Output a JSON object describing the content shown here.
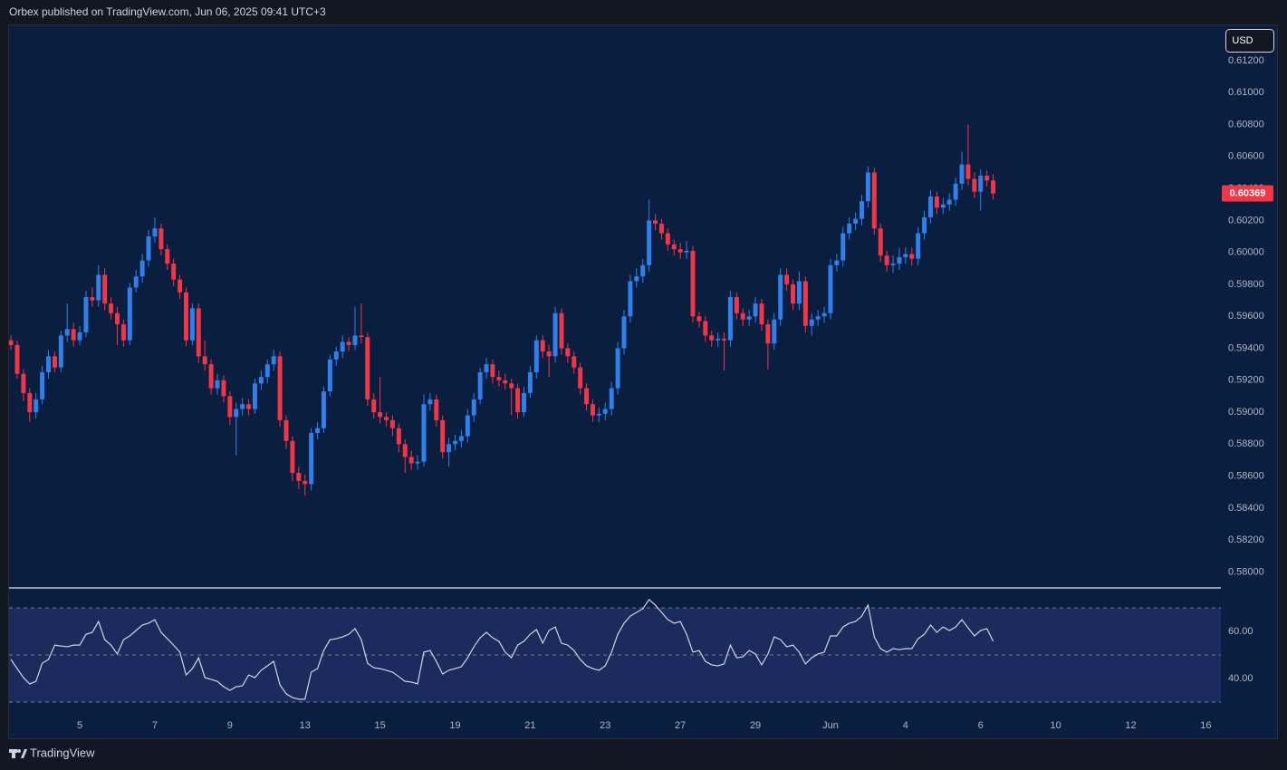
{
  "header": {
    "text": "Orbex published on TradingView.com, Jun 06, 2025 09:41 UTC+3"
  },
  "currency": "USD",
  "footer": {
    "brand": "TradingView"
  },
  "chart_data": [
    {
      "type": "candlestick",
      "up_color": "#2f80ed",
      "down_color": "#f23645",
      "open": [
        0.5945,
        0.5942,
        0.5924,
        0.5912,
        0.59,
        0.5908,
        0.5925,
        0.5935,
        0.5928,
        0.5948,
        0.5952,
        0.5945,
        0.595,
        0.5972,
        0.597,
        0.5986,
        0.5968,
        0.5962,
        0.5955,
        0.5945,
        0.5978,
        0.5985,
        0.5995,
        0.601,
        0.6015,
        0.6002,
        0.5993,
        0.5983,
        0.5975,
        0.5945,
        0.5965,
        0.5935,
        0.593,
        0.5915,
        0.592,
        0.591,
        0.5897,
        0.5902,
        0.5905,
        0.5902,
        0.5918,
        0.5922,
        0.593,
        0.5935,
        0.5895,
        0.5882,
        0.5862,
        0.5857,
        0.5855,
        0.5887,
        0.589,
        0.5913,
        0.5933,
        0.5938,
        0.5944,
        0.5942,
        0.5948,
        0.5947,
        0.5908,
        0.59,
        0.5897,
        0.5895,
        0.589,
        0.588,
        0.5872,
        0.5868,
        0.5869,
        0.5905,
        0.5908,
        0.5895,
        0.5875,
        0.588,
        0.5882,
        0.5885,
        0.5898,
        0.5908,
        0.5925,
        0.593,
        0.5922,
        0.592,
        0.5918,
        0.5915,
        0.59,
        0.5912,
        0.5925,
        0.5945,
        0.5938,
        0.5935,
        0.5962,
        0.594,
        0.5935,
        0.5928,
        0.5915,
        0.5905,
        0.5898,
        0.5899,
        0.5902,
        0.5915,
        0.594,
        0.596,
        0.5982,
        0.5985,
        0.5992,
        0.602,
        0.6018,
        0.6012,
        0.6005,
        0.6002,
        0.6,
        0.6001,
        0.596,
        0.5957,
        0.5948,
        0.5945,
        0.5946,
        0.5945,
        0.5972,
        0.5962,
        0.5958,
        0.596,
        0.5968,
        0.5955,
        0.5943,
        0.5958,
        0.5986,
        0.598,
        0.5968,
        0.5982,
        0.5954,
        0.5958,
        0.596,
        0.5962,
        0.5992,
        0.5995,
        0.6012,
        0.6018,
        0.6021,
        0.6032,
        0.605,
        0.6015,
        0.5998,
        0.5992,
        0.5993,
        0.5997,
        0.5999,
        0.5996,
        0.6012,
        0.6022,
        0.6035,
        0.6028,
        0.603,
        0.6033,
        0.6043,
        0.6055,
        0.6046,
        0.6038,
        0.6048,
        0.6045
      ],
      "high": [
        0.5948,
        0.5945,
        0.5927,
        0.5915,
        0.5912,
        0.5929,
        0.5939,
        0.5938,
        0.5951,
        0.5968,
        0.5956,
        0.5954,
        0.5976,
        0.5978,
        0.5992,
        0.599,
        0.5972,
        0.5966,
        0.5958,
        0.5981,
        0.5989,
        0.5999,
        0.6014,
        0.6022,
        0.6018,
        0.6005,
        0.5996,
        0.5986,
        0.5978,
        0.5968,
        0.5968,
        0.5945,
        0.5933,
        0.5924,
        0.5923,
        0.5913,
        0.5906,
        0.5909,
        0.5908,
        0.5921,
        0.5926,
        0.5933,
        0.5939,
        0.5938,
        0.5898,
        0.5885,
        0.5866,
        0.5861,
        0.589,
        0.5894,
        0.5916,
        0.5936,
        0.5941,
        0.5948,
        0.5947,
        0.5966,
        0.5968,
        0.595,
        0.5912,
        0.5922,
        0.59,
        0.5898,
        0.5893,
        0.5883,
        0.5876,
        0.5873,
        0.5911,
        0.5912,
        0.5911,
        0.5898,
        0.5884,
        0.5886,
        0.5889,
        0.5902,
        0.5912,
        0.5928,
        0.5934,
        0.5933,
        0.5926,
        0.5924,
        0.5921,
        0.5918,
        0.5916,
        0.5929,
        0.5948,
        0.5948,
        0.5942,
        0.5966,
        0.5965,
        0.5943,
        0.5938,
        0.5931,
        0.5918,
        0.5908,
        0.5903,
        0.5906,
        0.5919,
        0.5944,
        0.5964,
        0.5986,
        0.599,
        0.5996,
        0.6033,
        0.6024,
        0.6021,
        0.6015,
        0.6008,
        0.6006,
        0.6007,
        0.6004,
        0.5963,
        0.596,
        0.5951,
        0.595,
        0.595,
        0.5976,
        0.5975,
        0.5965,
        0.5964,
        0.5972,
        0.5971,
        0.5958,
        0.5962,
        0.599,
        0.599,
        0.5983,
        0.5988,
        0.5985,
        0.5962,
        0.5964,
        0.5966,
        0.5996,
        0.5999,
        0.6016,
        0.6022,
        0.6025,
        0.6036,
        0.6054,
        0.6053,
        0.6018,
        0.6001,
        0.5998,
        0.6003,
        0.6003,
        0.6003,
        0.6016,
        0.6026,
        0.6039,
        0.6038,
        0.6034,
        0.6037,
        0.6047,
        0.6063,
        0.608,
        0.605,
        0.6052,
        0.6051,
        0.6049
      ],
      "low": [
        0.5939,
        0.5921,
        0.5907,
        0.5894,
        0.5896,
        0.5905,
        0.5921,
        0.5925,
        0.5925,
        0.5944,
        0.5941,
        0.5942,
        0.5947,
        0.5966,
        0.5966,
        0.5964,
        0.5958,
        0.5942,
        0.5941,
        0.5942,
        0.5975,
        0.5981,
        0.5991,
        0.6006,
        0.5998,
        0.5989,
        0.5979,
        0.5971,
        0.5941,
        0.5942,
        0.5931,
        0.5926,
        0.5911,
        0.5911,
        0.5906,
        0.5892,
        0.5873,
        0.5898,
        0.5898,
        0.5899,
        0.5914,
        0.5918,
        0.5926,
        0.5891,
        0.5877,
        0.5857,
        0.5852,
        0.5848,
        0.5851,
        0.5883,
        0.5887,
        0.591,
        0.5929,
        0.5934,
        0.5938,
        0.5939,
        0.5943,
        0.5904,
        0.5896,
        0.5893,
        0.5891,
        0.5885,
        0.5875,
        0.5862,
        0.5864,
        0.5864,
        0.5866,
        0.5901,
        0.5891,
        0.5871,
        0.5866,
        0.5876,
        0.5878,
        0.5881,
        0.5894,
        0.5905,
        0.5921,
        0.5918,
        0.5916,
        0.5914,
        0.5898,
        0.5896,
        0.5897,
        0.5909,
        0.5921,
        0.5934,
        0.5922,
        0.5931,
        0.5936,
        0.5931,
        0.5924,
        0.5911,
        0.5901,
        0.5894,
        0.5894,
        0.5895,
        0.5898,
        0.5911,
        0.5936,
        0.5956,
        0.5978,
        0.5981,
        0.5988,
        0.6014,
        0.6008,
        0.6001,
        0.5998,
        0.5996,
        0.5996,
        0.5956,
        0.5953,
        0.5944,
        0.5941,
        0.5941,
        0.5926,
        0.5941,
        0.5958,
        0.5954,
        0.5954,
        0.5956,
        0.5951,
        0.5927,
        0.5939,
        0.5954,
        0.5976,
        0.5964,
        0.5964,
        0.595,
        0.5948,
        0.5954,
        0.5956,
        0.5958,
        0.5988,
        0.5991,
        0.6008,
        0.6014,
        0.6017,
        0.6028,
        0.6011,
        0.5994,
        0.5988,
        0.5987,
        0.5989,
        0.5993,
        0.5992,
        0.5992,
        0.6008,
        0.6018,
        0.6024,
        0.6024,
        0.6026,
        0.6029,
        0.6039,
        0.6042,
        0.6034,
        0.6026,
        0.6041,
        0.6033
      ],
      "close": [
        0.5942,
        0.5924,
        0.5912,
        0.59,
        0.5908,
        0.5925,
        0.5935,
        0.5928,
        0.5948,
        0.5952,
        0.5945,
        0.595,
        0.5972,
        0.597,
        0.5986,
        0.5968,
        0.5962,
        0.5955,
        0.5945,
        0.5978,
        0.5985,
        0.5995,
        0.601,
        0.6015,
        0.6002,
        0.5993,
        0.5983,
        0.5975,
        0.5945,
        0.5965,
        0.5935,
        0.593,
        0.5915,
        0.592,
        0.591,
        0.5897,
        0.5902,
        0.5905,
        0.5902,
        0.5918,
        0.5922,
        0.593,
        0.5935,
        0.5895,
        0.5882,
        0.5862,
        0.5857,
        0.5855,
        0.5887,
        0.589,
        0.5913,
        0.5933,
        0.5938,
        0.5944,
        0.5942,
        0.5948,
        0.5947,
        0.5908,
        0.59,
        0.5897,
        0.5895,
        0.589,
        0.588,
        0.5872,
        0.5868,
        0.5869,
        0.5905,
        0.5908,
        0.5895,
        0.5875,
        0.588,
        0.5882,
        0.5885,
        0.5898,
        0.5908,
        0.5925,
        0.593,
        0.5922,
        0.592,
        0.5918,
        0.5915,
        0.59,
        0.5912,
        0.5925,
        0.5945,
        0.5938,
        0.5935,
        0.5962,
        0.594,
        0.5935,
        0.5928,
        0.5915,
        0.5905,
        0.5898,
        0.5899,
        0.5902,
        0.5915,
        0.594,
        0.596,
        0.5982,
        0.5985,
        0.5992,
        0.602,
        0.6018,
        0.6012,
        0.6005,
        0.6002,
        0.6,
        0.6001,
        0.596,
        0.5957,
        0.5948,
        0.5945,
        0.5946,
        0.5945,
        0.5972,
        0.5962,
        0.5958,
        0.596,
        0.5968,
        0.5955,
        0.5943,
        0.5958,
        0.5986,
        0.598,
        0.5968,
        0.5982,
        0.5954,
        0.5958,
        0.596,
        0.5962,
        0.5992,
        0.5995,
        0.6012,
        0.6018,
        0.6021,
        0.6032,
        0.605,
        0.6015,
        0.5998,
        0.5992,
        0.5993,
        0.5997,
        0.5999,
        0.5996,
        0.6012,
        0.6022,
        0.6035,
        0.6028,
        0.603,
        0.6033,
        0.6043,
        0.6055,
        0.6046,
        0.6038,
        0.6048,
        0.6045,
        0.60369
      ],
      "xlim": [
        -0.3,
        193.4
      ],
      "xticks": [
        {
          "value": 11,
          "label": "5"
        },
        {
          "value": 23,
          "label": "7"
        },
        {
          "value": 35,
          "label": "9"
        },
        {
          "value": 47,
          "label": "13"
        },
        {
          "value": 59,
          "label": "15"
        },
        {
          "value": 71,
          "label": "19"
        },
        {
          "value": 83,
          "label": "21"
        },
        {
          "value": 95,
          "label": "23"
        },
        {
          "value": 107,
          "label": "27"
        },
        {
          "value": 119,
          "label": "29"
        },
        {
          "value": 131,
          "label": "Jun"
        },
        {
          "value": 143,
          "label": "4"
        },
        {
          "value": 155,
          "label": "6"
        },
        {
          "value": 167,
          "label": "10"
        },
        {
          "value": 179,
          "label": "12"
        },
        {
          "value": 191,
          "label": "16"
        }
      ],
      "ylim": [
        0.57906,
        0.61421
      ],
      "yticks": [
        {
          "value": 0.612,
          "label": "0.61200"
        },
        {
          "value": 0.61,
          "label": "0.61000"
        },
        {
          "value": 0.608,
          "label": "0.60800"
        },
        {
          "value": 0.606,
          "label": "0.60600"
        },
        {
          "value": 0.604,
          "label": "0.60400"
        },
        {
          "value": 0.602,
          "label": "0.60200"
        },
        {
          "value": 0.6,
          "label": "0.60000"
        },
        {
          "value": 0.598,
          "label": "0.59800"
        },
        {
          "value": 0.596,
          "label": "0.59600"
        },
        {
          "value": 0.594,
          "label": "0.59400"
        },
        {
          "value": 0.592,
          "label": "0.59200"
        },
        {
          "value": 0.59,
          "label": "0.59000"
        },
        {
          "value": 0.588,
          "label": "0.58800"
        },
        {
          "value": 0.586,
          "label": "0.58600"
        },
        {
          "value": 0.584,
          "label": "0.58400"
        },
        {
          "value": 0.582,
          "label": "0.58200"
        },
        {
          "value": 0.58,
          "label": "0.58000"
        }
      ]
    },
    {
      "type": "line",
      "color": "#d1d4dc",
      "band_color": "#1b2b5e",
      "values": [
        48.1,
        44.2,
        40.4,
        37.7,
        38.8,
        46.5,
        48.1,
        54.2,
        53.8,
        53.5,
        54.2,
        54.2,
        58.8,
        59.6,
        64.2,
        56.5,
        54.2,
        50.4,
        56.5,
        58.1,
        60.4,
        62.7,
        63.5,
        65.0,
        59.6,
        56.9,
        54.2,
        51.2,
        41.5,
        44.2,
        48.8,
        40.4,
        39.6,
        38.8,
        36.5,
        35.0,
        36.5,
        36.9,
        41.5,
        40.4,
        43.5,
        45.4,
        47.3,
        37.3,
        33.5,
        31.9,
        31.2,
        31.2,
        42.7,
        44.2,
        51.9,
        56.5,
        56.9,
        57.7,
        58.8,
        61.2,
        56.5,
        46.5,
        44.6,
        44.2,
        43.5,
        42.7,
        40.8,
        38.8,
        38.5,
        37.7,
        51.2,
        51.9,
        47.3,
        41.9,
        43.5,
        44.2,
        45.0,
        48.8,
        53.5,
        57.3,
        59.6,
        57.3,
        55.8,
        51.2,
        48.8,
        54.2,
        55.8,
        58.8,
        60.8,
        55.0,
        60.4,
        61.9,
        55.0,
        54.2,
        51.9,
        48.1,
        45.4,
        44.2,
        43.5,
        45.4,
        51.2,
        58.8,
        63.5,
        66.5,
        68.1,
        69.6,
        73.5,
        71.2,
        68.1,
        65.0,
        63.5,
        64.2,
        58.8,
        51.2,
        51.9,
        47.3,
        45.8,
        45.4,
        46.2,
        54.2,
        48.8,
        49.2,
        51.9,
        50.4,
        45.8,
        50.4,
        57.7,
        56.5,
        53.5,
        54.2,
        51.2,
        46.2,
        48.8,
        50.4,
        51.2,
        58.1,
        58.1,
        61.9,
        63.5,
        64.2,
        66.5,
        71.2,
        57.7,
        52.7,
        51.2,
        52.7,
        52.3,
        52.7,
        52.7,
        56.9,
        58.8,
        62.7,
        59.6,
        61.9,
        60.4,
        61.9,
        65.0,
        61.5,
        58.1,
        60.4,
        61.2,
        55.8
      ],
      "levels": [
        70,
        50,
        30
      ],
      "ylim": [
        25,
        78.1
      ],
      "yticks": [
        {
          "value": 60,
          "label": "60.00"
        },
        {
          "value": 40,
          "label": "40.00"
        }
      ]
    }
  ]
}
